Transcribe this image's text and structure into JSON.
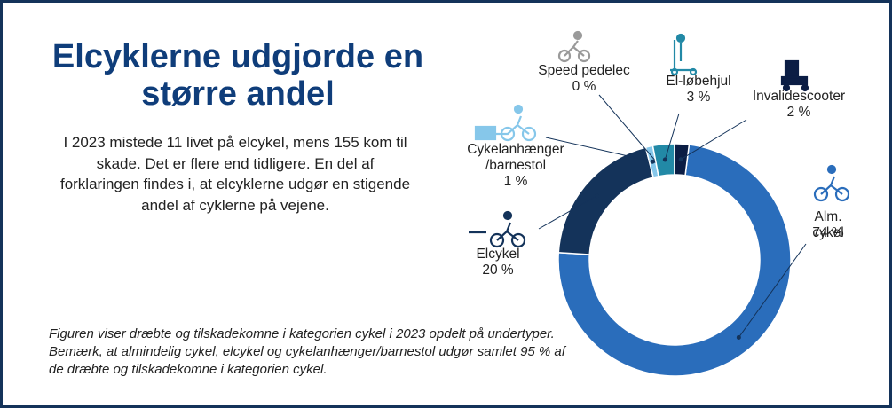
{
  "chart_data": {
    "type": "donut",
    "title": "Elcyklerne udgjorde en større andel",
    "subtitle": "I 2023 mistede 11 livet på elcykel, mens 155 kom til skade. Det er flere end tidligere. En del af forklaringen findes i, at elcyklerne udgør en stigende andel af cyklerne på vejene.",
    "note": "Figuren viser dræbte og tilskadekomne i kategorien cykel i 2023 opdelt på undertyper. Bemærk, at almindelig cykel, elcykel og cykelanhænger/barnestol udgør samlet 95 % af de dræbte og tilskadekomne i kategorien cykel.",
    "categories": [
      "Alm. cykel",
      "Elcykel",
      "Cykelanhænger\n/barnestol",
      "Speed pedelec",
      "El-løbehjul",
      "Invalidescooter"
    ],
    "values": [
      74,
      20,
      1,
      0,
      3,
      2
    ],
    "value_labels": [
      "74 %",
      "20 %",
      "1 %",
      "0 %",
      "3 %",
      "2 %"
    ],
    "colors": [
      "#2a6dbb",
      "#14335a",
      "#86c7ea",
      "#d9d9d9",
      "#2289a6",
      "#0b1d44"
    ]
  }
}
